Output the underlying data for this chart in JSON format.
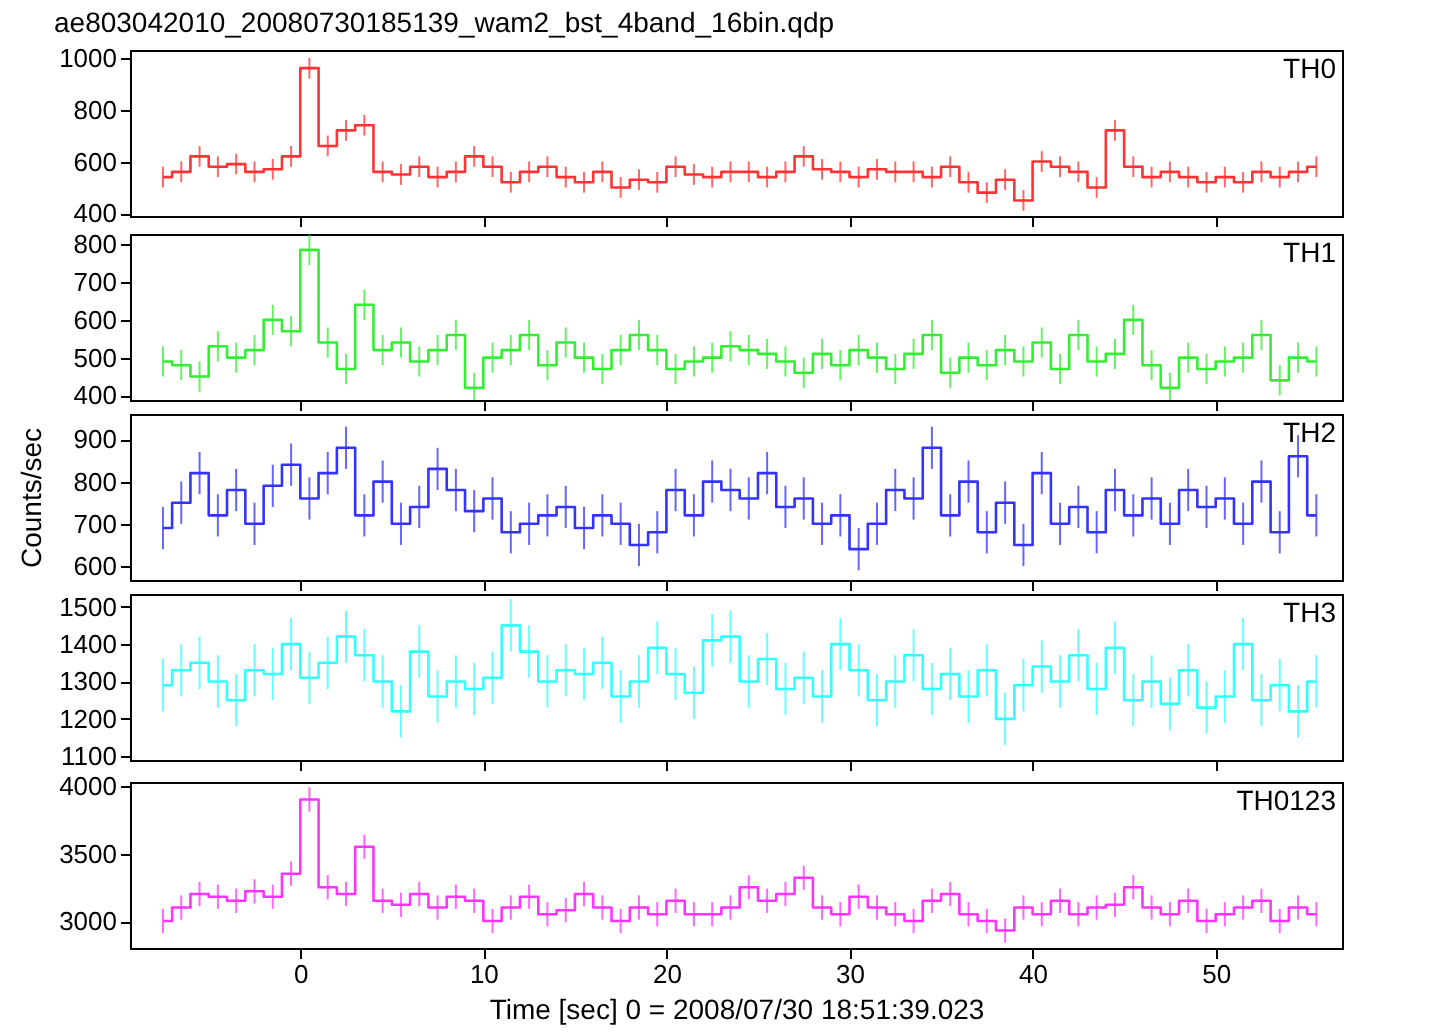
{
  "chart_data": [
    {
      "type": "step",
      "title": "ae803042010_20080730185139_wam2_bst_4band_16bin.qdp",
      "x": [
        -7.5,
        -6.5,
        -5.5,
        -4.5,
        -3.5,
        -2.5,
        -1.5,
        -0.5,
        0.5,
        1.5,
        2.5,
        3.5,
        4.5,
        5.5,
        6.5,
        7.5,
        8.5,
        9.5,
        10.5,
        11.5,
        12.5,
        13.5,
        14.5,
        15.5,
        16.5,
        17.5,
        18.5,
        19.5,
        20.5,
        21.5,
        22.5,
        23.5,
        24.5,
        25.5,
        26.5,
        27.5,
        28.5,
        29.5,
        30.5,
        31.5,
        32.5,
        33.5,
        34.5,
        35.5,
        36.5,
        37.5,
        38.5,
        39.5,
        40.5,
        41.5,
        42.5,
        43.5,
        44.5,
        45.5,
        46.5,
        47.5,
        48.5,
        49.5,
        50.5,
        51.5,
        52.5,
        53.5,
        54.5,
        55.5
      ],
      "series": [
        {
          "name": "TH0",
          "color": "#ff3333",
          "values": [
            540,
            560,
            620,
            580,
            590,
            560,
            570,
            620,
            960,
            660,
            720,
            740,
            560,
            550,
            580,
            540,
            560,
            620,
            580,
            520,
            560,
            580,
            540,
            520,
            560,
            500,
            530,
            520,
            580,
            550,
            540,
            560,
            560,
            540,
            560,
            620,
            570,
            560,
            540,
            570,
            560,
            560,
            540,
            580,
            520,
            480,
            530,
            450,
            600,
            580,
            560,
            500,
            720,
            580,
            540,
            560,
            540,
            520,
            540,
            520,
            560,
            540,
            560,
            580
          ],
          "errors": [
            40,
            40,
            40,
            40,
            40,
            40,
            40,
            40,
            40,
            40,
            40,
            40,
            40,
            40,
            40,
            40,
            40,
            40,
            40,
            40,
            40,
            40,
            40,
            40,
            40,
            40,
            40,
            40,
            40,
            40,
            40,
            40,
            40,
            40,
            40,
            40,
            40,
            40,
            40,
            40,
            40,
            40,
            40,
            40,
            40,
            40,
            40,
            40,
            40,
            40,
            40,
            40,
            40,
            40,
            40,
            40,
            40,
            40,
            40,
            40,
            40,
            40,
            40,
            40
          ]
        }
      ],
      "xlim": [
        -9.3,
        56.9
      ],
      "xticks": [
        0,
        10,
        20,
        30,
        40,
        50
      ],
      "ylim": [
        390,
        1030
      ],
      "yticks": [
        400,
        600,
        800,
        1000
      ],
      "tick_labels": "y",
      "grid": false
    },
    {
      "type": "step",
      "x": [
        -7.5,
        -6.5,
        -5.5,
        -4.5,
        -3.5,
        -2.5,
        -1.5,
        -0.5,
        0.5,
        1.5,
        2.5,
        3.5,
        4.5,
        5.5,
        6.5,
        7.5,
        8.5,
        9.5,
        10.5,
        11.5,
        12.5,
        13.5,
        14.5,
        15.5,
        16.5,
        17.5,
        18.5,
        19.5,
        20.5,
        21.5,
        22.5,
        23.5,
        24.5,
        25.5,
        26.5,
        27.5,
        28.5,
        29.5,
        30.5,
        31.5,
        32.5,
        33.5,
        34.5,
        35.5,
        36.5,
        37.5,
        38.5,
        39.5,
        40.5,
        41.5,
        42.5,
        43.5,
        44.5,
        45.5,
        46.5,
        47.5,
        48.5,
        49.5,
        50.5,
        51.5,
        52.5,
        53.5,
        54.5,
        55.5
      ],
      "series": [
        {
          "name": "TH1",
          "color": "#33ee33",
          "values": [
            490,
            480,
            450,
            530,
            500,
            520,
            600,
            570,
            785,
            540,
            470,
            640,
            520,
            540,
            490,
            520,
            560,
            420,
            500,
            520,
            560,
            480,
            540,
            500,
            470,
            520,
            560,
            520,
            470,
            490,
            500,
            530,
            520,
            510,
            490,
            460,
            510,
            480,
            520,
            500,
            470,
            510,
            560,
            460,
            500,
            480,
            520,
            490,
            540,
            470,
            560,
            490,
            510,
            600,
            480,
            420,
            500,
            470,
            490,
            500,
            560,
            440,
            500,
            490
          ],
          "errors": [
            40,
            40,
            40,
            40,
            40,
            40,
            40,
            40,
            40,
            40,
            40,
            40,
            40,
            40,
            40,
            40,
            40,
            40,
            40,
            40,
            40,
            40,
            40,
            40,
            40,
            40,
            40,
            40,
            40,
            40,
            40,
            40,
            40,
            40,
            40,
            40,
            40,
            40,
            40,
            40,
            40,
            40,
            40,
            40,
            40,
            40,
            40,
            40,
            40,
            40,
            40,
            40,
            40,
            40,
            40,
            40,
            40,
            40,
            40,
            40,
            40,
            40,
            40,
            40
          ]
        }
      ],
      "xlim": [
        -9.3,
        56.9
      ],
      "xticks": [
        0,
        10,
        20,
        30,
        40,
        50
      ],
      "ylim": [
        388,
        827
      ],
      "yticks": [
        400,
        500,
        600,
        700,
        800
      ],
      "tick_labels": "y",
      "grid": false
    },
    {
      "type": "step",
      "ylabel": "Counts/sec",
      "x": [
        -7.5,
        -6.5,
        -5.5,
        -4.5,
        -3.5,
        -2.5,
        -1.5,
        -0.5,
        0.5,
        1.5,
        2.5,
        3.5,
        4.5,
        5.5,
        6.5,
        7.5,
        8.5,
        9.5,
        10.5,
        11.5,
        12.5,
        13.5,
        14.5,
        15.5,
        16.5,
        17.5,
        18.5,
        19.5,
        20.5,
        21.5,
        22.5,
        23.5,
        24.5,
        25.5,
        26.5,
        27.5,
        28.5,
        29.5,
        30.5,
        31.5,
        32.5,
        33.5,
        34.5,
        35.5,
        36.5,
        37.5,
        38.5,
        39.5,
        40.5,
        41.5,
        42.5,
        43.5,
        44.5,
        45.5,
        46.5,
        47.5,
        48.5,
        49.5,
        50.5,
        51.5,
        52.5,
        53.5,
        54.5,
        55.5
      ],
      "series": [
        {
          "name": "TH2",
          "color": "#3333ff",
          "values": [
            690,
            750,
            820,
            720,
            780,
            700,
            790,
            840,
            760,
            820,
            880,
            720,
            800,
            700,
            740,
            830,
            780,
            730,
            760,
            680,
            700,
            720,
            740,
            690,
            720,
            700,
            650,
            680,
            780,
            720,
            800,
            780,
            760,
            820,
            740,
            760,
            700,
            720,
            640,
            700,
            780,
            760,
            880,
            720,
            800,
            680,
            750,
            650,
            820,
            700,
            740,
            680,
            780,
            720,
            760,
            700,
            780,
            740,
            760,
            700,
            800,
            680,
            860,
            720
          ],
          "errors": [
            50,
            50,
            50,
            50,
            50,
            50,
            50,
            50,
            50,
            50,
            50,
            50,
            50,
            50,
            50,
            50,
            50,
            50,
            50,
            50,
            50,
            50,
            50,
            50,
            50,
            50,
            50,
            50,
            50,
            50,
            50,
            50,
            50,
            50,
            50,
            50,
            50,
            50,
            50,
            50,
            50,
            50,
            50,
            50,
            50,
            50,
            50,
            50,
            50,
            50,
            50,
            50,
            50,
            50,
            50,
            50,
            50,
            50,
            50,
            50,
            50,
            50,
            50,
            50
          ]
        }
      ],
      "xlim": [
        -9.3,
        56.9
      ],
      "xticks": [
        0,
        10,
        20,
        30,
        40,
        50
      ],
      "ylim": [
        567,
        960
      ],
      "yticks": [
        600,
        700,
        800,
        900
      ],
      "tick_labels": "y",
      "grid": false
    },
    {
      "type": "step",
      "x": [
        -7.5,
        -6.5,
        -5.5,
        -4.5,
        -3.5,
        -2.5,
        -1.5,
        -0.5,
        0.5,
        1.5,
        2.5,
        3.5,
        4.5,
        5.5,
        6.5,
        7.5,
        8.5,
        9.5,
        10.5,
        11.5,
        12.5,
        13.5,
        14.5,
        15.5,
        16.5,
        17.5,
        18.5,
        19.5,
        20.5,
        21.5,
        22.5,
        23.5,
        24.5,
        25.5,
        26.5,
        27.5,
        28.5,
        29.5,
        30.5,
        31.5,
        32.5,
        33.5,
        34.5,
        35.5,
        36.5,
        37.5,
        38.5,
        39.5,
        40.5,
        41.5,
        42.5,
        43.5,
        44.5,
        45.5,
        46.5,
        47.5,
        48.5,
        49.5,
        50.5,
        51.5,
        52.5,
        53.5,
        54.5,
        55.5
      ],
      "series": [
        {
          "name": "TH3",
          "color": "#33ffff",
          "values": [
            1290,
            1330,
            1350,
            1300,
            1250,
            1330,
            1320,
            1400,
            1310,
            1350,
            1420,
            1370,
            1300,
            1220,
            1380,
            1260,
            1300,
            1280,
            1310,
            1450,
            1380,
            1300,
            1330,
            1320,
            1350,
            1260,
            1300,
            1390,
            1320,
            1270,
            1410,
            1420,
            1300,
            1360,
            1280,
            1310,
            1260,
            1400,
            1330,
            1250,
            1300,
            1370,
            1280,
            1320,
            1260,
            1330,
            1200,
            1290,
            1340,
            1300,
            1370,
            1280,
            1390,
            1250,
            1300,
            1240,
            1330,
            1230,
            1260,
            1400,
            1250,
            1290,
            1220,
            1300
          ],
          "errors": [
            70,
            70,
            70,
            70,
            70,
            70,
            70,
            70,
            70,
            70,
            70,
            70,
            70,
            70,
            70,
            70,
            70,
            70,
            70,
            70,
            70,
            70,
            70,
            70,
            70,
            70,
            70,
            70,
            70,
            70,
            70,
            70,
            70,
            70,
            70,
            70,
            70,
            70,
            70,
            70,
            70,
            70,
            70,
            70,
            70,
            70,
            70,
            70,
            70,
            70,
            70,
            70,
            70,
            70,
            70,
            70,
            70,
            70,
            70,
            70,
            70,
            70,
            70,
            70
          ]
        }
      ],
      "xlim": [
        -9.3,
        56.9
      ],
      "xticks": [
        0,
        10,
        20,
        30,
        40,
        50
      ],
      "ylim": [
        1090,
        1534
      ],
      "yticks": [
        1100,
        1200,
        1300,
        1400,
        1500
      ],
      "tick_labels": "y",
      "grid": false
    },
    {
      "type": "step",
      "xlabel": "Time [sec] 0 = 2008/07/30 18:51:39.023",
      "x": [
        -7.5,
        -6.5,
        -5.5,
        -4.5,
        -3.5,
        -2.5,
        -1.5,
        -0.5,
        0.5,
        1.5,
        2.5,
        3.5,
        4.5,
        5.5,
        6.5,
        7.5,
        8.5,
        9.5,
        10.5,
        11.5,
        12.5,
        13.5,
        14.5,
        15.5,
        16.5,
        17.5,
        18.5,
        19.5,
        20.5,
        21.5,
        22.5,
        23.5,
        24.5,
        25.5,
        26.5,
        27.5,
        28.5,
        29.5,
        30.5,
        31.5,
        32.5,
        33.5,
        34.5,
        35.5,
        36.5,
        37.5,
        38.5,
        39.5,
        40.5,
        41.5,
        42.5,
        43.5,
        44.5,
        45.5,
        46.5,
        47.5,
        48.5,
        49.5,
        50.5,
        51.5,
        52.5,
        53.5,
        54.5,
        55.5
      ],
      "series": [
        {
          "name": "TH0123",
          "color": "#ff33ff",
          "values": [
            3000,
            3100,
            3200,
            3180,
            3150,
            3220,
            3180,
            3350,
            3900,
            3250,
            3200,
            3550,
            3150,
            3120,
            3200,
            3100,
            3180,
            3150,
            3000,
            3100,
            3180,
            3050,
            3080,
            3200,
            3100,
            3000,
            3100,
            3050,
            3150,
            3050,
            3050,
            3100,
            3250,
            3150,
            3200,
            3320,
            3100,
            3050,
            3180,
            3100,
            3050,
            3000,
            3150,
            3200,
            3050,
            3000,
            2930,
            3100,
            3050,
            3150,
            3050,
            3100,
            3120,
            3250,
            3100,
            3050,
            3150,
            3000,
            3050,
            3100,
            3150,
            3000,
            3100,
            3050
          ],
          "errors": [
            90,
            90,
            90,
            90,
            90,
            90,
            90,
            90,
            90,
            90,
            90,
            90,
            90,
            90,
            90,
            90,
            90,
            90,
            90,
            90,
            90,
            90,
            90,
            90,
            90,
            90,
            90,
            90,
            90,
            90,
            90,
            90,
            90,
            90,
            90,
            90,
            90,
            90,
            90,
            90,
            90,
            90,
            90,
            90,
            90,
            90,
            90,
            90,
            90,
            90,
            90,
            90,
            90,
            90,
            90,
            90,
            90,
            90,
            90,
            90,
            90,
            90,
            90,
            90
          ]
        }
      ],
      "xlim": [
        -9.3,
        56.9
      ],
      "xticks": [
        0,
        10,
        20,
        30,
        40,
        50
      ],
      "ylim": [
        2800,
        4030
      ],
      "yticks": [
        3000,
        3500,
        4000
      ],
      "grid": false
    }
  ]
}
